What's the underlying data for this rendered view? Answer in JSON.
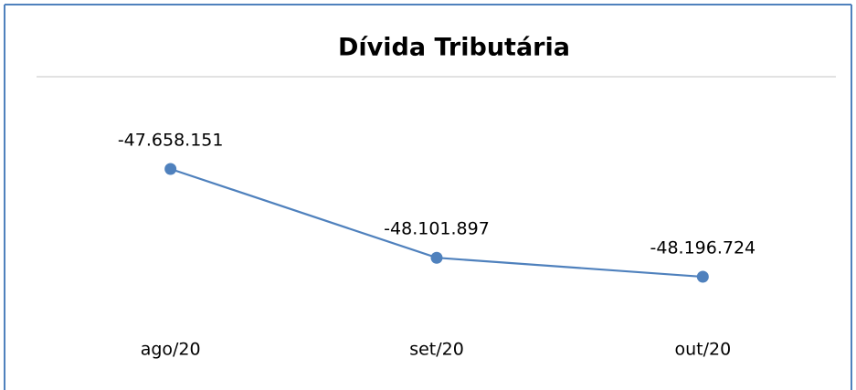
{
  "chart_data": {
    "type": "line",
    "title": "Dívida Tributária",
    "categories": [
      "ago/20",
      "set/20",
      "out/20"
    ],
    "values": [
      -47658151,
      -48101897,
      -48196724
    ],
    "value_labels": [
      "-47.658.151",
      "-48.101.897",
      "-48.196.724"
    ],
    "color": "#4f81bd"
  }
}
